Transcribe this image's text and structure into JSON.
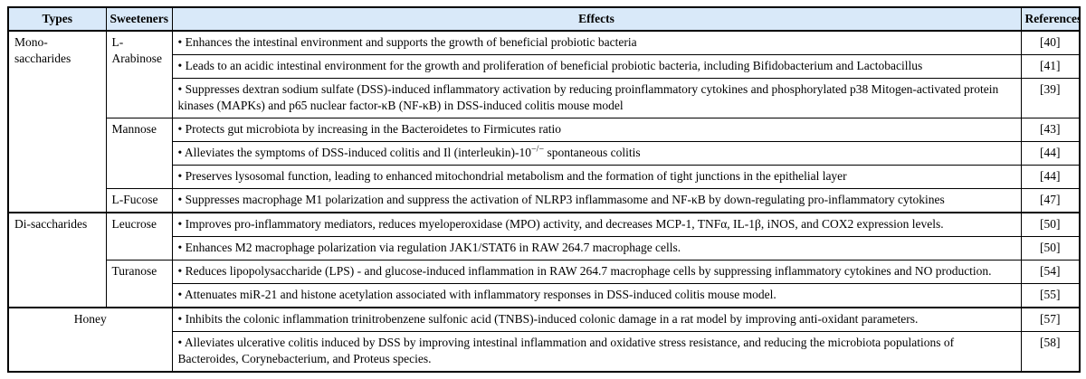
{
  "colors": {
    "header_bg": "#d9e9f9",
    "border": "#000000",
    "page_bg": "#ffffff",
    "text": "#000000"
  },
  "table": {
    "headers": [
      {
        "label": "Types"
      },
      {
        "label": "Sweeteners"
      },
      {
        "label": "Effects"
      },
      {
        "label": "References"
      }
    ],
    "rows": [
      {
        "cells": [
          {
            "role": "type",
            "text": "Mono-saccharides",
            "rowspan": 7
          },
          {
            "role": "sweetener",
            "text": "L-Arabinose",
            "rowspan": 3
          },
          {
            "role": "effect",
            "text": "• Enhances the intestinal environment and supports the growth of beneficial probiotic bacteria"
          },
          {
            "role": "reference",
            "text": "[40]"
          }
        ]
      },
      {
        "cells": [
          {
            "role": "effect",
            "text": "• Leads to an acidic intestinal environment for the growth and proliferation of beneficial probiotic bacteria, including Bifidobacterium and Lactobacillus"
          },
          {
            "role": "reference",
            "text": "[41]"
          }
        ]
      },
      {
        "cells": [
          {
            "role": "effect",
            "text": "• Suppresses dextran sodium sulfate (DSS)-induced inflammatory activation by reducing proinflammatory cytokines and phosphorylated p38 Mitogen-activated protein kinases (MAPKs) and p65 nuclear factor-κB (NF-κB) in DSS-induced colitis mouse model"
          },
          {
            "role": "reference",
            "text": "[39]"
          }
        ]
      },
      {
        "cells": [
          {
            "role": "sweetener",
            "text": "Mannose",
            "rowspan": 3
          },
          {
            "role": "effect",
            "text": "• Protects gut microbiota by increasing in the Bacteroidetes to Firmicutes ratio"
          },
          {
            "role": "reference",
            "text": "[43]"
          }
        ]
      },
      {
        "cells": [
          {
            "role": "effect",
            "parts": [
              {
                "t": "• Alleviates the symptoms of DSS-induced colitis and Il (interleukin)-10"
              },
              {
                "t": "−/−",
                "sup": true
              },
              {
                "t": " spontaneous colitis"
              }
            ]
          },
          {
            "role": "reference",
            "text": "[44]"
          }
        ]
      },
      {
        "cells": [
          {
            "role": "effect",
            "text": "• Preserves lysosomal function, leading to enhanced mitochondrial metabolism and the formation of tight junctions in the epithelial layer"
          },
          {
            "role": "reference",
            "text": "[44]"
          }
        ]
      },
      {
        "cells": [
          {
            "role": "sweetener",
            "text": "L-Fucose"
          },
          {
            "role": "effect",
            "text": "• Suppresses macrophage M1 polarization and suppress the activation of NLRP3 inflammasome and NF-κB by down-regulating pro-inflammatory cytokines"
          },
          {
            "role": "reference",
            "text": "[47]"
          }
        ]
      },
      {
        "section": true,
        "cells": [
          {
            "role": "type",
            "text": "Di-saccharides",
            "rowspan": 4
          },
          {
            "role": "sweetener",
            "text": "Leucrose",
            "rowspan": 2
          },
          {
            "role": "effect",
            "text": "• Improves pro-inflammatory mediators, reduces myeloperoxidase (MPO) activity, and decreases MCP-1, TNFα, IL-1β, iNOS, and COX2 expression levels."
          },
          {
            "role": "reference",
            "text": "[50]"
          }
        ]
      },
      {
        "cells": [
          {
            "role": "effect",
            "text": "• Enhances M2 macrophage polarization via regulation JAK1/STAT6 in RAW 264.7 macrophage cells."
          },
          {
            "role": "reference",
            "text": "[50]"
          }
        ]
      },
      {
        "cells": [
          {
            "role": "sweetener",
            "text": "Turanose",
            "rowspan": 2
          },
          {
            "role": "effect",
            "text": "• Reduces lipopolysaccharide (LPS) - and glucose-induced inflammation in RAW 264.7 macrophage cells by suppressing inflammatory cytokines and NO production."
          },
          {
            "role": "reference",
            "text": "[54]"
          }
        ]
      },
      {
        "cells": [
          {
            "role": "effect",
            "text": "• Attenuates miR-21 and histone acetylation associated with inflammatory responses in DSS-induced colitis mouse model."
          },
          {
            "role": "reference",
            "text": "[55]"
          }
        ]
      },
      {
        "section": true,
        "cells": [
          {
            "role": "type-merged",
            "text": "Honey",
            "rowspan": 2,
            "colspan": 2
          },
          {
            "role": "effect",
            "text": "• Inhibits the colonic inflammation trinitrobenzene sulfonic acid (TNBS)-induced colonic damage in a rat model by improving anti-oxidant parameters."
          },
          {
            "role": "reference",
            "text": "[57]"
          }
        ]
      },
      {
        "cells": [
          {
            "role": "effect",
            "text": "• Alleviates ulcerative colitis induced by DSS by improving intestinal inflammation and oxidative stress resistance, and reducing the microbiota populations of Bacteroides, Corynebacterium, and Proteus species."
          },
          {
            "role": "reference",
            "text": "[58]"
          }
        ]
      }
    ]
  }
}
